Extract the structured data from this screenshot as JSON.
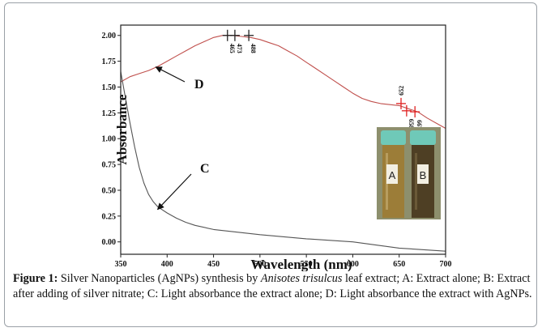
{
  "chart_data": {
    "type": "line",
    "xlabel": "Wavelength (nm)",
    "ylabel": "Absorbance",
    "xlim": [
      350,
      700
    ],
    "ylim": [
      -0.12,
      2.1
    ],
    "x_ticks": [
      "350",
      "400",
      "450",
      "500",
      "550",
      "600",
      "650",
      "700"
    ],
    "y_ticks": [
      "2.00",
      "1.75",
      "1.50",
      "1.25",
      "1.00",
      "0.75",
      "0.50",
      "0.25",
      "0.00"
    ],
    "series": [
      {
        "name": "D",
        "color": "#c0504d",
        "x": [
          350,
          360,
          370,
          380,
          390,
          400,
          410,
          420,
          430,
          440,
          450,
          460,
          470,
          480,
          490,
          500,
          510,
          520,
          530,
          540,
          550,
          560,
          570,
          580,
          590,
          600,
          610,
          620,
          630,
          640,
          650,
          660,
          670,
          680,
          690,
          700
        ],
        "y": [
          1.55,
          1.6,
          1.63,
          1.66,
          1.7,
          1.75,
          1.8,
          1.85,
          1.9,
          1.94,
          1.98,
          2.0,
          2.0,
          1.99,
          1.98,
          1.96,
          1.93,
          1.9,
          1.85,
          1.8,
          1.74,
          1.68,
          1.62,
          1.56,
          1.5,
          1.44,
          1.39,
          1.36,
          1.34,
          1.33,
          1.32,
          1.29,
          1.26,
          1.2,
          1.15,
          1.1
        ]
      },
      {
        "name": "C",
        "color": "#555555",
        "x": [
          350,
          355,
          360,
          365,
          370,
          375,
          380,
          385,
          390,
          400,
          410,
          420,
          430,
          450,
          500,
          550,
          600,
          650,
          700
        ],
        "y": [
          1.65,
          1.4,
          1.15,
          0.92,
          0.72,
          0.57,
          0.46,
          0.39,
          0.34,
          0.28,
          0.23,
          0.19,
          0.16,
          0.12,
          0.07,
          0.03,
          0.0,
          -0.06,
          -0.09
        ]
      }
    ],
    "peak_markers": [
      {
        "x": 465,
        "y": 2.0,
        "label": "465",
        "color": "#222222"
      },
      {
        "x": 473,
        "y": 2.0,
        "label": "473",
        "color": "#222222"
      },
      {
        "x": 488,
        "y": 2.0,
        "label": "488",
        "color": "#222222"
      },
      {
        "x": 652,
        "y": 1.34,
        "label": "652",
        "color": "#e02020"
      },
      {
        "x": 658,
        "y": 1.27,
        "label": "658",
        "color": "#e02020"
      },
      {
        "x": 667,
        "y": 1.26,
        "label": "667",
        "color": "#e02020"
      }
    ],
    "annotations": [
      {
        "text": "D",
        "target_x": 386,
        "target_y": 1.71
      },
      {
        "text": "C",
        "target_x": 388,
        "target_y": 0.33
      }
    ],
    "inset": {
      "tube_labels": [
        "A",
        "B"
      ],
      "colors": {
        "cap": "#6fc9b8",
        "tube_a": "#9c7d38",
        "tube_b": "#4e3f24",
        "background": "#8d8f6d"
      }
    }
  },
  "caption": {
    "label": "Figure 1:",
    "before_species": " Silver Nanoparticles (AgNPs) synthesis by ",
    "species": "Anisotes trisulcus",
    "after_species": " leaf extract; A: Extract alone; B: Extract after adding of silver nitrate; C: Light absorbance the extract alone; D: Light absorbance the extract with AgNPs."
  }
}
